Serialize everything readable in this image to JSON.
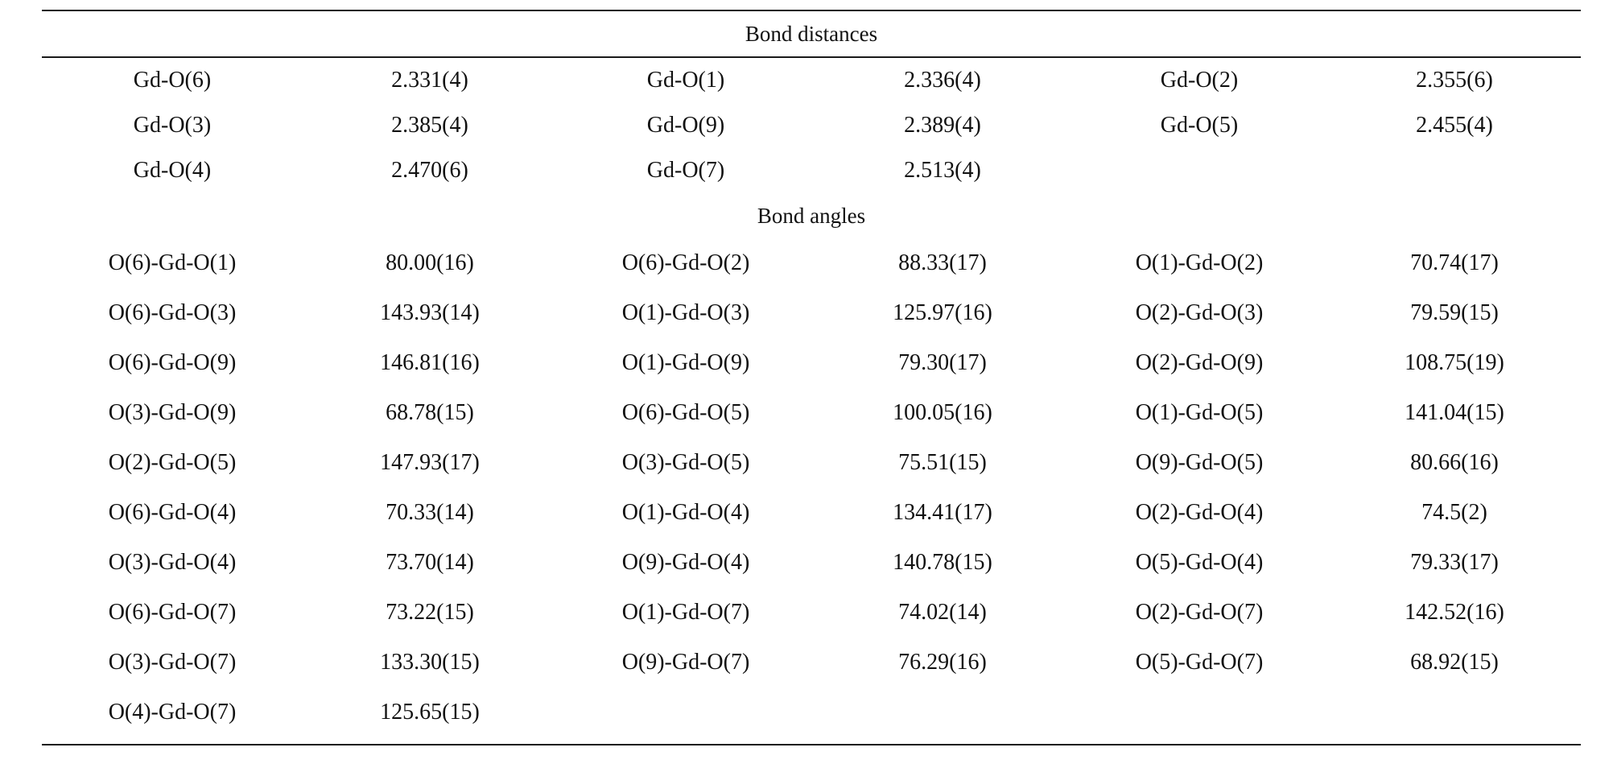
{
  "sections": {
    "distances": {
      "title": "Bond distances",
      "rows": [
        [
          "Gd-O(6)",
          "2.331(4)",
          "Gd-O(1)",
          "2.336(4)",
          "Gd-O(2)",
          "2.355(6)"
        ],
        [
          "Gd-O(3)",
          "2.385(4)",
          "Gd-O(9)",
          "2.389(4)",
          "Gd-O(5)",
          "2.455(4)"
        ],
        [
          "Gd-O(4)",
          "2.470(6)",
          "Gd-O(7)",
          "2.513(4)",
          "",
          ""
        ]
      ]
    },
    "angles": {
      "title": "Bond angles",
      "rows": [
        [
          "O(6)-Gd-O(1)",
          "80.00(16)",
          "O(6)-Gd-O(2)",
          "88.33(17)",
          "O(1)-Gd-O(2)",
          "70.74(17)"
        ],
        [
          "O(6)-Gd-O(3)",
          "143.93(14)",
          "O(1)-Gd-O(3)",
          "125.97(16)",
          "O(2)-Gd-O(3)",
          "79.59(15)"
        ],
        [
          "O(6)-Gd-O(9)",
          "146.81(16)",
          "O(1)-Gd-O(9)",
          "79.30(17)",
          "O(2)-Gd-O(9)",
          "108.75(19)"
        ],
        [
          "O(3)-Gd-O(9)",
          "68.78(15)",
          "O(6)-Gd-O(5)",
          "100.05(16)",
          "O(1)-Gd-O(5)",
          "141.04(15)"
        ],
        [
          "O(2)-Gd-O(5)",
          "147.93(17)",
          "O(3)-Gd-O(5)",
          "75.51(15)",
          "O(9)-Gd-O(5)",
          "80.66(16)"
        ],
        [
          "O(6)-Gd-O(4)",
          "70.33(14)",
          "O(1)-Gd-O(4)",
          "134.41(17)",
          "O(2)-Gd-O(4)",
          "74.5(2)"
        ],
        [
          "O(3)-Gd-O(4)",
          "73.70(14)",
          "O(9)-Gd-O(4)",
          "140.78(15)",
          "O(5)-Gd-O(4)",
          "79.33(17)"
        ],
        [
          "O(6)-Gd-O(7)",
          "73.22(15)",
          "O(1)-Gd-O(7)",
          "74.02(14)",
          "O(2)-Gd-O(7)",
          "142.52(16)"
        ],
        [
          "O(3)-Gd-O(7)",
          "133.30(15)",
          "O(9)-Gd-O(7)",
          "76.29(16)",
          "O(5)-Gd-O(7)",
          "68.92(15)"
        ],
        [
          "O(4)-Gd-O(7)",
          "125.65(15)",
          "",
          "",
          "",
          ""
        ]
      ]
    }
  }
}
